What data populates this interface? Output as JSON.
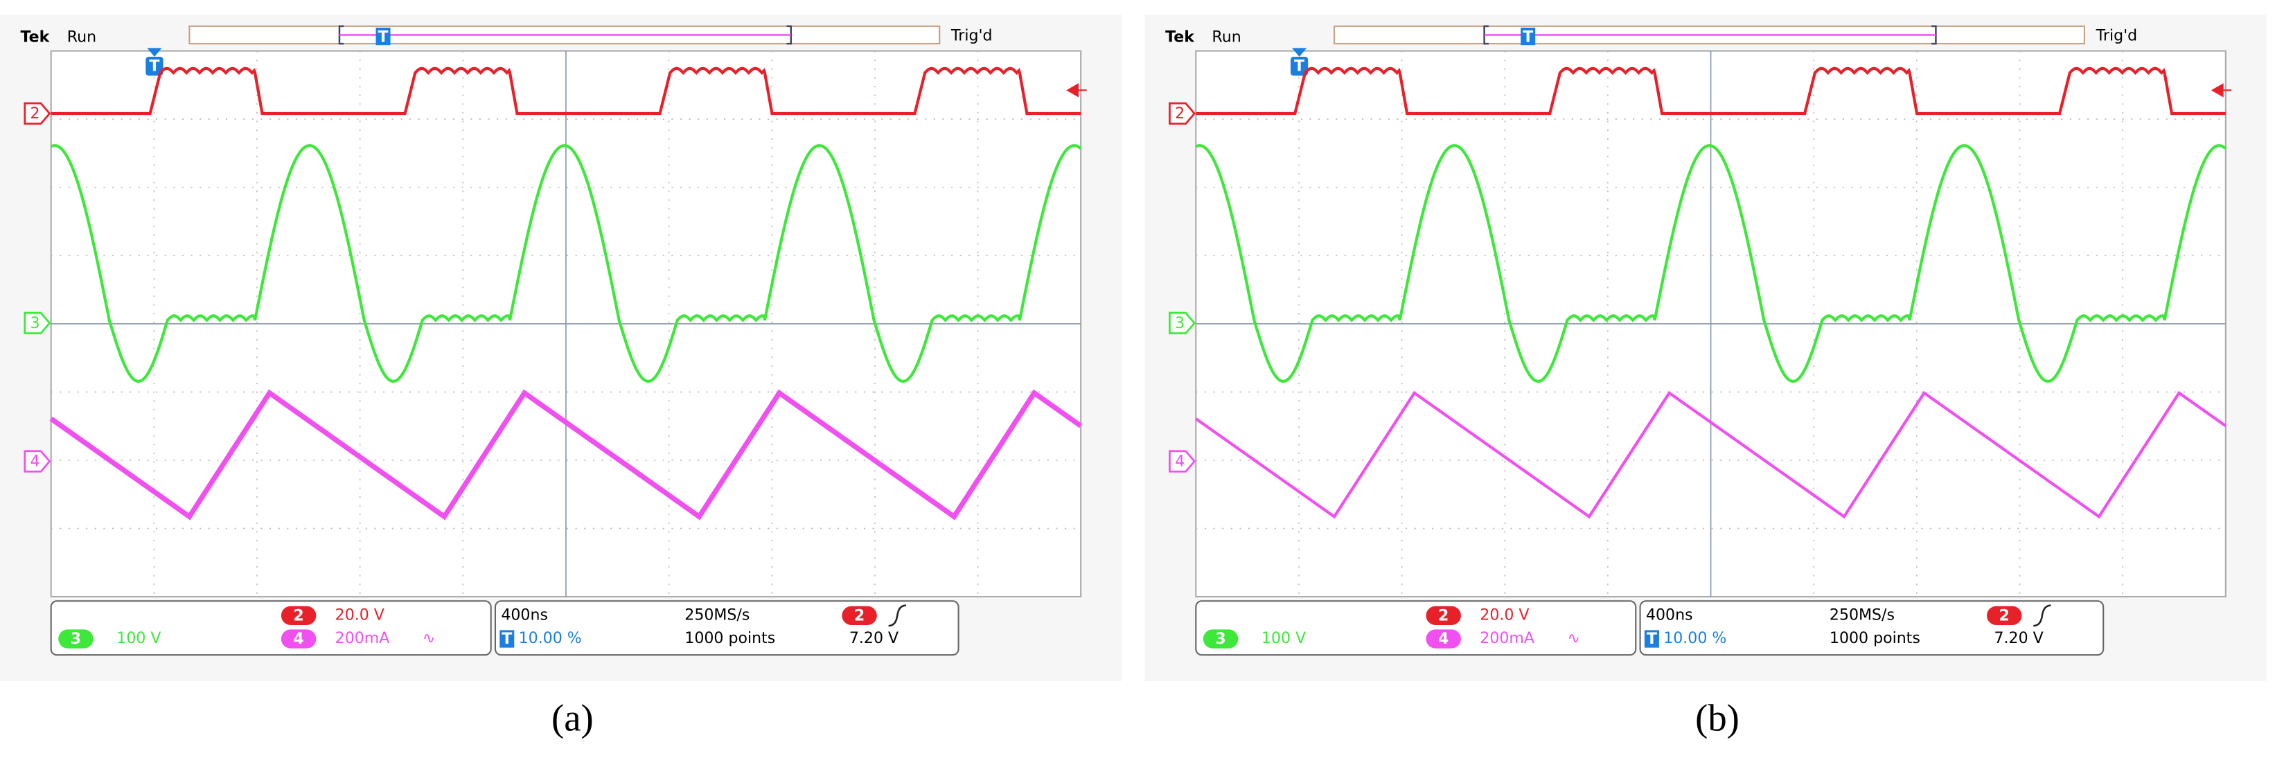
{
  "panels": [
    {
      "brand": "Tek",
      "status": "Run",
      "trigger_status": "Trig'd",
      "trigger_marker": "T",
      "channel_markers": [
        "2",
        "3",
        "4"
      ],
      "readouts": {
        "ch2_badge": "2",
        "ch2_scale": "20.0 V",
        "ch3_badge": "3",
        "ch3_scale": "100 V",
        "ch4_badge": "4",
        "ch4_scale": "200mA",
        "ch4_coupling": "∿",
        "timebase": "400ns",
        "sample_rate": "250MS/s",
        "trig_source": "2",
        "trig_position_icon": "T",
        "trig_position": "10.00 %",
        "record_length": "1000 points",
        "trig_level": "7.20 V"
      },
      "caption": "(a)"
    },
    {
      "brand": "Tek",
      "status": "Run",
      "trigger_status": "Trig'd",
      "trigger_marker": "T",
      "channel_markers": [
        "2",
        "3",
        "4"
      ],
      "readouts": {
        "ch2_badge": "2",
        "ch2_scale": "20.0 V",
        "ch3_badge": "3",
        "ch3_scale": "100 V",
        "ch4_badge": "4",
        "ch4_scale": "200mA",
        "ch4_coupling": "∿",
        "timebase": "400ns",
        "sample_rate": "250MS/s",
        "trig_source": "2",
        "trig_position_icon": "T",
        "trig_position": "10.00 %",
        "record_length": "1000 points",
        "trig_level": "7.20 V"
      },
      "caption": "(b)"
    }
  ]
}
